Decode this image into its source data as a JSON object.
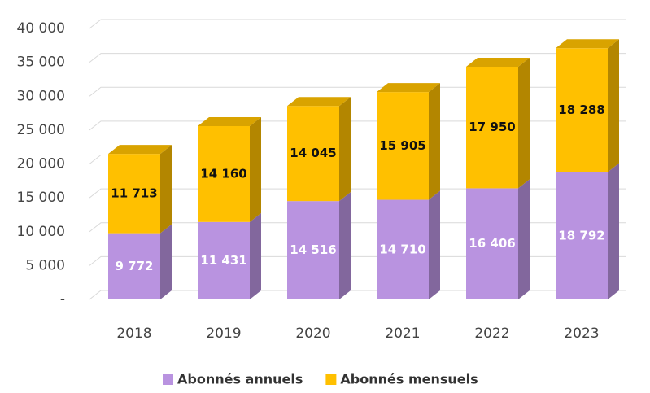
{
  "chart_data": {
    "type": "stacked_bar_3d",
    "categories": [
      "2018",
      "2019",
      "2020",
      "2021",
      "2022",
      "2023"
    ],
    "series": [
      {
        "name": "Abonnés annuels",
        "color": "#b993e0",
        "values": [
          9772,
          11431,
          14516,
          14710,
          16406,
          18792
        ],
        "value_labels": [
          "9 772",
          "11 431",
          "14 516",
          "14 710",
          "16 406",
          "18 792"
        ]
      },
      {
        "name": "Abonnés mensuels",
        "color": "#ffc000",
        "values": [
          11713,
          14160,
          14045,
          15905,
          17950,
          18288
        ],
        "value_labels": [
          "11 713",
          "14 160",
          "14 045",
          "15 905",
          "17 950",
          "18 288"
        ]
      }
    ],
    "ylim": [
      0,
      40000
    ],
    "yticks": [
      {
        "value": 0,
        "label": "-"
      },
      {
        "value": 5000,
        "label": "5 000"
      },
      {
        "value": 10000,
        "label": "10 000"
      },
      {
        "value": 15000,
        "label": "15 000"
      },
      {
        "value": 20000,
        "label": "20 000"
      },
      {
        "value": 25000,
        "label": "25 000"
      },
      {
        "value": 30000,
        "label": "30 000"
      },
      {
        "value": 35000,
        "label": "35 000"
      },
      {
        "value": 40000,
        "label": "40 000"
      }
    ],
    "grid": true,
    "legend": "bottom"
  }
}
